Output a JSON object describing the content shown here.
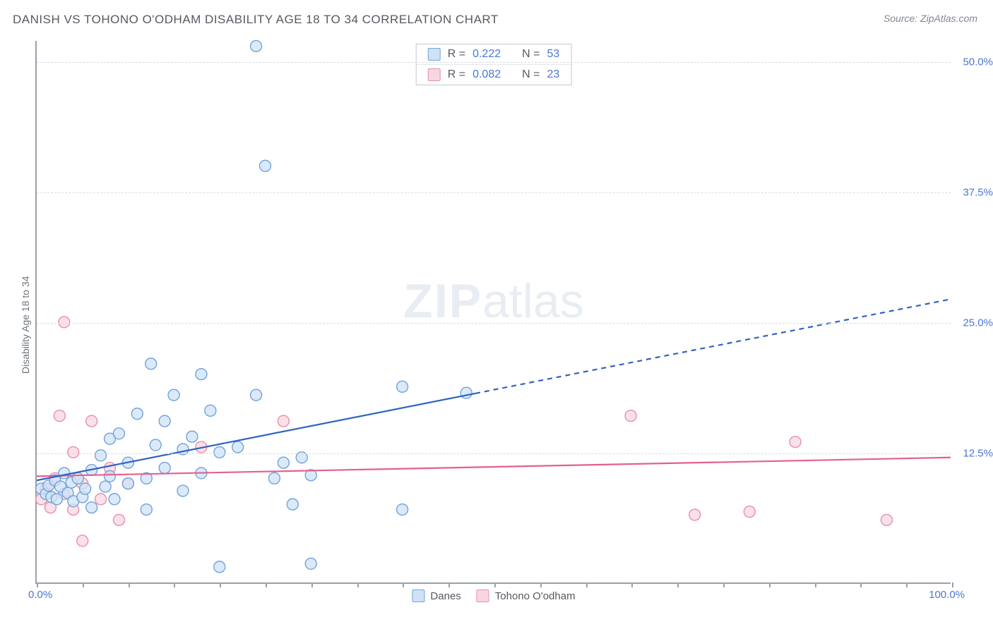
{
  "title": "DANISH VS TOHONO O'ODHAM DISABILITY AGE 18 TO 34 CORRELATION CHART",
  "source_prefix": "Source: ",
  "source_name": "ZipAtlas.com",
  "y_axis_label": "Disability Age 18 to 34",
  "watermark_bold": "ZIP",
  "watermark_rest": "atlas",
  "plot": {
    "xlim": [
      0,
      100
    ],
    "ylim": [
      0,
      52
    ],
    "x_ticks_minor_step": 5,
    "x_tick_labels": {
      "left": "0.0%",
      "right": "100.0%"
    },
    "y_gridlines": [
      12.5,
      25.0,
      37.5,
      50.0
    ],
    "y_tick_labels": [
      "12.5%",
      "25.0%",
      "37.5%",
      "50.0%"
    ],
    "grid_color": "#d7dbe0",
    "axis_color": "#9aa0a8",
    "background": "#ffffff"
  },
  "series": {
    "danes": {
      "label": "Danes",
      "marker_fill": "#cfe2f6",
      "marker_stroke": "#6fa3dc",
      "marker_radius": 8,
      "line_color": "#2f63c4",
      "line_width": 2.2,
      "R": "0.222",
      "N": "53",
      "regression": {
        "x1": 0,
        "y1": 9.8,
        "x2": 100,
        "y2": 27.2,
        "solid_until_x": 48
      },
      "points": [
        [
          0.5,
          9.0
        ],
        [
          1,
          8.5
        ],
        [
          1.3,
          9.3
        ],
        [
          1.6,
          8.2
        ],
        [
          2,
          9.8
        ],
        [
          2.2,
          8.0
        ],
        [
          2.6,
          9.2
        ],
        [
          3,
          10.5
        ],
        [
          3.4,
          8.6
        ],
        [
          3.8,
          9.6
        ],
        [
          4.0,
          7.8
        ],
        [
          4.5,
          10.0
        ],
        [
          5,
          8.2
        ],
        [
          5.3,
          9.0
        ],
        [
          6,
          10.8
        ],
        [
          6,
          7.2
        ],
        [
          7,
          12.2
        ],
        [
          7.5,
          9.2
        ],
        [
          8,
          10.2
        ],
        [
          8,
          13.8
        ],
        [
          8.5,
          8.0
        ],
        [
          9,
          14.3
        ],
        [
          10,
          11.5
        ],
        [
          10,
          9.5
        ],
        [
          11,
          16.2
        ],
        [
          12,
          10.0
        ],
        [
          12,
          7.0
        ],
        [
          12.5,
          21.0
        ],
        [
          13,
          13.2
        ],
        [
          14,
          15.5
        ],
        [
          14,
          11.0
        ],
        [
          15,
          18.0
        ],
        [
          16,
          12.8
        ],
        [
          16,
          8.8
        ],
        [
          17,
          14.0
        ],
        [
          18,
          20.0
        ],
        [
          18,
          10.5
        ],
        [
          19,
          16.5
        ],
        [
          20,
          12.5
        ],
        [
          20,
          1.5
        ],
        [
          22,
          13.0
        ],
        [
          24,
          18.0
        ],
        [
          24,
          51.5
        ],
        [
          25,
          40.0
        ],
        [
          26,
          10.0
        ],
        [
          27,
          11.5
        ],
        [
          28,
          7.5
        ],
        [
          29,
          12.0
        ],
        [
          30,
          1.8
        ],
        [
          30,
          10.3
        ],
        [
          40,
          18.8
        ],
        [
          40,
          7.0
        ],
        [
          47,
          18.2
        ]
      ]
    },
    "tohono": {
      "label": "Tohono O'odham",
      "marker_fill": "#f8d6e0",
      "marker_stroke": "#e590ad",
      "marker_radius": 8,
      "line_color": "#e65f8e",
      "line_width": 2.2,
      "R": "0.082",
      "N": "23",
      "regression": {
        "x1": 0,
        "y1": 10.2,
        "x2": 100,
        "y2": 12.0,
        "solid_until_x": 100
      },
      "points": [
        [
          0.5,
          8.0
        ],
        [
          1,
          9.0
        ],
        [
          1.5,
          7.2
        ],
        [
          2,
          10.0
        ],
        [
          2.5,
          16.0
        ],
        [
          3,
          8.5
        ],
        [
          3,
          25.0
        ],
        [
          4,
          7.0
        ],
        [
          4,
          12.5
        ],
        [
          5,
          4.0
        ],
        [
          5,
          9.5
        ],
        [
          6,
          15.5
        ],
        [
          7,
          8.0
        ],
        [
          8,
          11.0
        ],
        [
          9,
          6.0
        ],
        [
          10,
          9.5
        ],
        [
          18,
          13.0
        ],
        [
          27,
          15.5
        ],
        [
          65,
          16.0
        ],
        [
          72,
          6.5
        ],
        [
          78,
          6.8
        ],
        [
          83,
          13.5
        ],
        [
          93,
          6.0
        ]
      ]
    }
  },
  "stats_box": {
    "rows": [
      {
        "series": "danes",
        "R_label": "R =",
        "N_label": "N ="
      },
      {
        "series": "tohono",
        "R_label": "R =",
        "N_label": "N ="
      }
    ]
  },
  "bottom_legend": [
    {
      "series": "danes"
    },
    {
      "series": "tohono"
    }
  ]
}
